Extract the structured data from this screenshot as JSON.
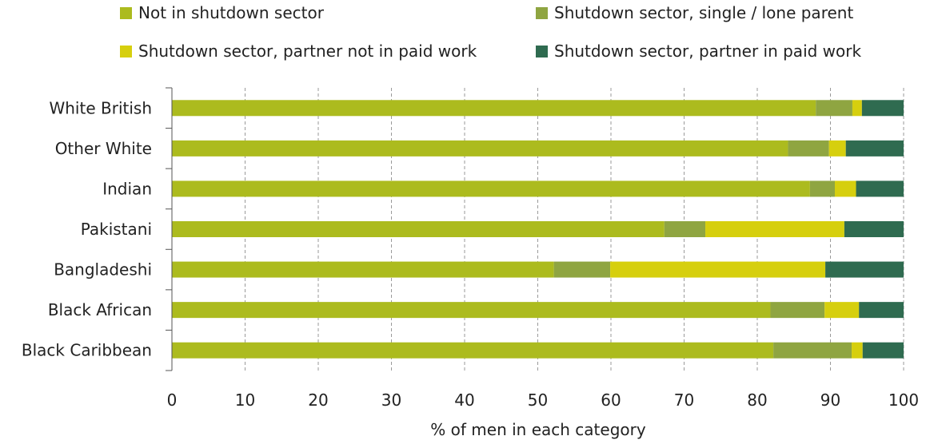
{
  "chart_data": {
    "type": "bar",
    "orientation": "horizontal",
    "stacked": true,
    "categories": [
      "White British",
      "Other White",
      "Indian",
      "Pakistani",
      "Bangladeshi",
      "Black African",
      "Black Caribbean"
    ],
    "series": [
      {
        "name": "Not in shutdown sector",
        "color": "#acbb1e",
        "values": [
          88.0,
          84.2,
          87.2,
          67.3,
          52.2,
          81.8,
          82.2
        ]
      },
      {
        "name": "Shutdown sector, single / lone parent",
        "color": "#8fa541",
        "values": [
          5.0,
          5.6,
          3.4,
          5.6,
          7.7,
          7.4,
          10.7
        ]
      },
      {
        "name": "Shutdown sector, partner not in paid work",
        "color": "#d6cf0e",
        "values": [
          1.3,
          2.3,
          2.9,
          19.0,
          29.4,
          4.7,
          1.5
        ]
      },
      {
        "name": "Shutdown sector, partner in paid work",
        "color": "#2f6b50",
        "values": [
          5.7,
          7.9,
          6.5,
          8.1,
          10.7,
          6.1,
          5.6
        ]
      }
    ],
    "xlabel": "% of men in each category",
    "ylabel": "",
    "xlim": [
      0,
      100
    ],
    "xticks": [
      0,
      10,
      20,
      30,
      40,
      50,
      60,
      70,
      80,
      90,
      100
    ],
    "grid": "vertical dashed",
    "legend_position": "top"
  }
}
